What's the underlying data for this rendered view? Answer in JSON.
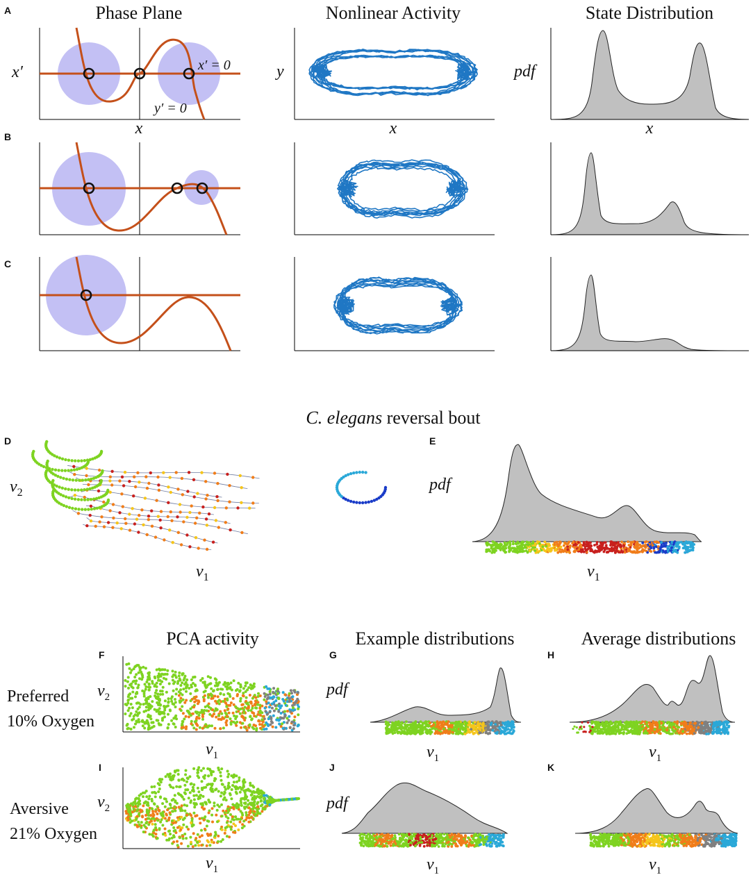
{
  "panels": {
    "A": "A",
    "B": "B",
    "C": "C",
    "D": "D",
    "E": "E",
    "F": "F",
    "G": "G",
    "H": "H",
    "I": "I",
    "J": "J",
    "K": "K"
  },
  "column_titles": {
    "phase_plane": "Phase Plane",
    "nonlinear_activity": "Nonlinear Activity",
    "state_distribution": "State Distribution"
  },
  "axis_labels": {
    "x": "x",
    "y": "y",
    "x_prime": "x′",
    "pdf": "pdf",
    "x_nullcline": "x′ = 0",
    "y_nullcline": "y′ = 0",
    "v1": "v",
    "v2": "v",
    "sub1": "1",
    "sub2": "2"
  },
  "section_title": {
    "italic": "C. elegans",
    "rest": " reversal bout"
  },
  "lower_titles": {
    "pca": "PCA activity",
    "example": "Example distributions",
    "average": "Average distributions"
  },
  "conditions": {
    "preferred_line1": "Preferred",
    "preferred_line2": "10% Oxygen",
    "aversive_line1": "Aversive",
    "aversive_line2": "21% Oxygen"
  },
  "colors": {
    "nullcline": "#c4501a",
    "basin": "#b9b5f2",
    "trajectory": "#1f77c4",
    "pdf_fill": "#c0c0c0",
    "green": "#7ed321",
    "orange": "#f07d1a",
    "red": "#c8201e",
    "yellow": "#f5c51a",
    "blue": "#1a3cc8",
    "cyan": "#2aa8d8",
    "gray": "#808080"
  }
}
